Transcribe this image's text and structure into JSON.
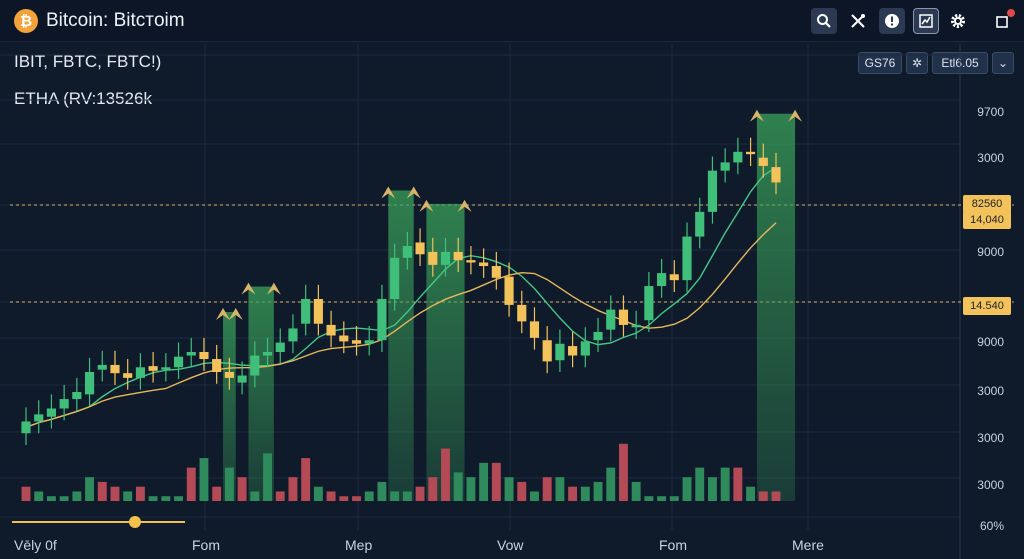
{
  "app": {
    "logo_glyph": "₿",
    "title": "Bitcoin: Bitcтoim"
  },
  "toolbar": {
    "icons": [
      "search-icon",
      "tools-icon",
      "alert-icon",
      "indicator-icon",
      "gear-icon",
      "window-icon"
    ]
  },
  "header": {
    "tickers": "IBIT, FBTC, FBTC!)",
    "subticker": "ETHA (RV:13526k",
    "pill_left": "GS76",
    "pill_mid": "✲",
    "pill_right": "Etl6.05",
    "pill_dropdown": "⌄"
  },
  "axis": {
    "y_labels": [
      "9700",
      "3000",
      "9000",
      "9000",
      "3000",
      "3000",
      "3000"
    ],
    "price_tag_top": [
      "82560",
      "14,040"
    ],
    "price_tag_bottom": "14.540",
    "x_labels": [
      "Vēly 0f",
      "Fom",
      "Mep",
      "Vow",
      "Fom",
      "Mere"
    ],
    "corner_label": "60%"
  },
  "colors": {
    "up": "#3fbf7a",
    "down": "#f3c25a",
    "vol_up": "#2f8a5c",
    "vol_down": "#b44a55",
    "ma_fast": "#46c784",
    "ma_slow": "#e6b85a",
    "highlight": "#3aa25a"
  },
  "chart_data": {
    "type": "candlestick",
    "candles": [
      {
        "o": 0,
        "c": 1
      },
      {
        "o": 1,
        "c": 1.6
      },
      {
        "o": 1.4,
        "c": 2.1
      },
      {
        "o": 2.1,
        "c": 2.9
      },
      {
        "o": 2.9,
        "c": 3.5
      },
      {
        "o": 3.3,
        "c": 5.2
      },
      {
        "o": 5.4,
        "c": 5.8
      },
      {
        "o": 5.8,
        "c": 5.1
      },
      {
        "o": 5.1,
        "c": 4.7
      },
      {
        "o": 4.7,
        "c": 5.6
      },
      {
        "o": 5.7,
        "c": 5.3
      },
      {
        "o": 5.4,
        "c": 5.6
      },
      {
        "o": 5.6,
        "c": 6.5
      },
      {
        "o": 6.6,
        "c": 6.9
      },
      {
        "o": 6.9,
        "c": 6.3
      },
      {
        "o": 6.3,
        "c": 5.2
      },
      {
        "o": 5.2,
        "c": 4.7
      },
      {
        "o": 4.3,
        "c": 4.9
      },
      {
        "o": 4.9,
        "c": 6.6
      },
      {
        "o": 6.6,
        "c": 6.9
      },
      {
        "o": 6.9,
        "c": 7.7
      },
      {
        "o": 7.8,
        "c": 8.9
      },
      {
        "o": 9.3,
        "c": 11.4
      },
      {
        "o": 11.4,
        "c": 9.3
      },
      {
        "o": 9.2,
        "c": 8.3
      },
      {
        "o": 8.3,
        "c": 7.8
      },
      {
        "o": 7.9,
        "c": 7.6
      },
      {
        "o": 7.6,
        "c": 7.9
      },
      {
        "o": 7.9,
        "c": 11.4
      },
      {
        "o": 11.4,
        "c": 14.9
      },
      {
        "o": 14.9,
        "c": 15.9
      },
      {
        "o": 16.2,
        "c": 15.2
      },
      {
        "o": 15.4,
        "c": 14.3
      },
      {
        "o": 14.3,
        "c": 15.4
      },
      {
        "o": 15.4,
        "c": 14.7
      },
      {
        "o": 14.7,
        "c": 14.5
      },
      {
        "o": 14.5,
        "c": 14.2
      },
      {
        "o": 14.2,
        "c": 13.2
      },
      {
        "o": 13.3,
        "c": 10.9
      },
      {
        "o": 10.9,
        "c": 9.5
      },
      {
        "o": 9.5,
        "c": 8.1
      },
      {
        "o": 7.9,
        "c": 6.1
      },
      {
        "o": 6.2,
        "c": 7.6
      },
      {
        "o": 7.4,
        "c": 6.6
      },
      {
        "o": 6.6,
        "c": 7.8
      },
      {
        "o": 7.9,
        "c": 8.6
      },
      {
        "o": 8.8,
        "c": 10.5
      },
      {
        "o": 10.5,
        "c": 9.2
      },
      {
        "o": 9.0,
        "c": 9.2
      },
      {
        "o": 9.6,
        "c": 12.5
      },
      {
        "o": 12.5,
        "c": 13.6
      },
      {
        "o": 13.5,
        "c": 13.0
      },
      {
        "o": 13.0,
        "c": 16.7
      },
      {
        "o": 16.7,
        "c": 18.8
      },
      {
        "o": 18.8,
        "c": 22.3
      },
      {
        "o": 22.3,
        "c": 23.0
      },
      {
        "o": 23.0,
        "c": 23.9
      },
      {
        "o": 23.9,
        "c": 23.7
      },
      {
        "o": 23.4,
        "c": 22.7
      },
      {
        "o": 22.6,
        "c": 21.3
      }
    ],
    "volume": [
      {
        "v": 3,
        "up": false
      },
      {
        "v": 2,
        "up": true
      },
      {
        "v": 1,
        "up": true
      },
      {
        "v": 1,
        "up": true
      },
      {
        "v": 2,
        "up": true
      },
      {
        "v": 5,
        "up": true
      },
      {
        "v": 4,
        "up": false
      },
      {
        "v": 3,
        "up": false
      },
      {
        "v": 2,
        "up": true
      },
      {
        "v": 3,
        "up": false
      },
      {
        "v": 1,
        "up": true
      },
      {
        "v": 1,
        "up": true
      },
      {
        "v": 1,
        "up": true
      },
      {
        "v": 7,
        "up": false
      },
      {
        "v": 9,
        "up": true
      },
      {
        "v": 3,
        "up": false
      },
      {
        "v": 7,
        "up": true
      },
      {
        "v": 5,
        "up": false
      },
      {
        "v": 2,
        "up": true
      },
      {
        "v": 10,
        "up": true
      },
      {
        "v": 2,
        "up": false
      },
      {
        "v": 5,
        "up": false
      },
      {
        "v": 9,
        "up": false
      },
      {
        "v": 3,
        "up": true
      },
      {
        "v": 2,
        "up": false
      },
      {
        "v": 1,
        "up": false
      },
      {
        "v": 1,
        "up": false
      },
      {
        "v": 2,
        "up": true
      },
      {
        "v": 4,
        "up": true
      },
      {
        "v": 2,
        "up": true
      },
      {
        "v": 2,
        "up": true
      },
      {
        "v": 3,
        "up": false
      },
      {
        "v": 5,
        "up": false
      },
      {
        "v": 11,
        "up": false
      },
      {
        "v": 6,
        "up": true
      },
      {
        "v": 5,
        "up": true
      },
      {
        "v": 8,
        "up": true
      },
      {
        "v": 8,
        "up": false
      },
      {
        "v": 5,
        "up": true
      },
      {
        "v": 4,
        "up": false
      },
      {
        "v": 2,
        "up": true
      },
      {
        "v": 5,
        "up": false
      },
      {
        "v": 5,
        "up": true
      },
      {
        "v": 3,
        "up": false
      },
      {
        "v": 3,
        "up": true
      },
      {
        "v": 4,
        "up": true
      },
      {
        "v": 7,
        "up": true
      },
      {
        "v": 12,
        "up": false
      },
      {
        "v": 4,
        "up": true
      },
      {
        "v": 1,
        "up": true
      },
      {
        "v": 1,
        "up": true
      },
      {
        "v": 1,
        "up": true
      },
      {
        "v": 5,
        "up": true
      },
      {
        "v": 7,
        "up": true
      },
      {
        "v": 5,
        "up": true
      },
      {
        "v": 7,
        "up": true
      },
      {
        "v": 7,
        "up": false
      },
      {
        "v": 3,
        "up": true
      },
      {
        "v": 2,
        "up": false
      },
      {
        "v": 2,
        "up": false
      }
    ],
    "highlight_ranges": [
      [
        16,
        17
      ],
      [
        18,
        20
      ],
      [
        29,
        31
      ],
      [
        32,
        35
      ],
      [
        58,
        61
      ]
    ],
    "y_range": [
      -1,
      30
    ],
    "vol_range": [
      0,
      13
    ]
  }
}
